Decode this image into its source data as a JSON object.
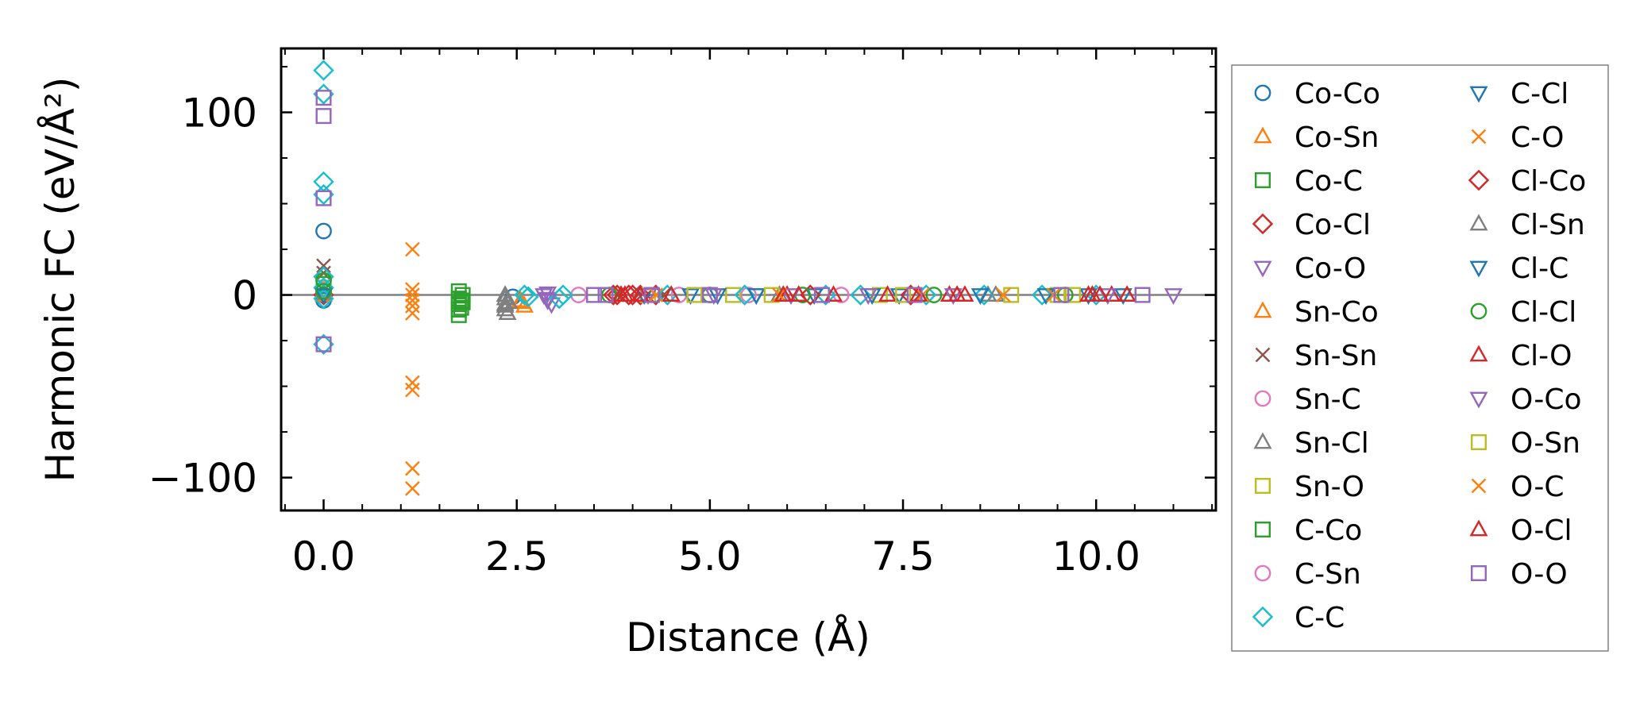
{
  "chart_data": {
    "type": "scatter",
    "title": "",
    "xlabel": "Distance (Å)",
    "ylabel": "Harmonic FC (eV/Å²)",
    "xlim": [
      -0.55,
      11.55
    ],
    "ylim": [
      -118,
      135
    ],
    "xticks": [
      0,
      2.5,
      5,
      7.5,
      10
    ],
    "xtick_labels": [
      "0.0",
      "2.5",
      "5.0",
      "7.5",
      "10.0"
    ],
    "yticks": [
      -100,
      0,
      100
    ],
    "ytick_labels": [
      "−100",
      "0",
      "100"
    ],
    "zero_line": 0,
    "grid": false,
    "tick_direction": "in",
    "legend_location": "outside-right",
    "legend_columns": 2,
    "series": [
      {
        "name": "Co-Co",
        "marker": "circle",
        "color": "#1f77b4",
        "points": [
          [
            0,
            0
          ],
          [
            0,
            35
          ],
          [
            0,
            2
          ],
          [
            0,
            -3
          ],
          [
            2.45,
            -1
          ]
        ]
      },
      {
        "name": "Co-Sn",
        "marker": "triangle-up",
        "color": "#ff7f0e",
        "points": [
          [
            2.55,
            -3
          ],
          [
            2.6,
            -6
          ],
          [
            0,
            1
          ]
        ]
      },
      {
        "name": "Co-C",
        "marker": "square",
        "color": "#2ca02c",
        "points": [
          [
            1.75,
            2
          ],
          [
            1.75,
            -2
          ],
          [
            1.75,
            -5
          ],
          [
            1.75,
            -8
          ],
          [
            1.75,
            -11
          ],
          [
            1.78,
            -3
          ],
          [
            1.78,
            -7
          ]
        ]
      },
      {
        "name": "Co-Cl",
        "marker": "diamond",
        "color": "#d62728",
        "points": [
          [
            0,
            0
          ],
          [
            3.75,
            0
          ],
          [
            3.95,
            0
          ],
          [
            4.1,
            0
          ],
          [
            4.3,
            0
          ]
        ]
      },
      {
        "name": "Co-O",
        "marker": "triangle-down",
        "color": "#9467bd",
        "points": [
          [
            2.85,
            0
          ],
          [
            2.9,
            -2
          ],
          [
            2.95,
            -5
          ],
          [
            2.9,
            1
          ]
        ]
      },
      {
        "name": "Sn-Co",
        "marker": "triangle-up",
        "color": "#ff7f0e",
        "points": [
          [
            2.55,
            -4
          ],
          [
            0,
            0
          ]
        ]
      },
      {
        "name": "Sn-Sn",
        "marker": "x",
        "color": "#8c564b",
        "points": [
          [
            0,
            16
          ],
          [
            0,
            12
          ],
          [
            0,
            5
          ],
          [
            3.8,
            0
          ],
          [
            4.4,
            0
          ]
        ]
      },
      {
        "name": "Sn-C",
        "marker": "circle",
        "color": "#e377c2",
        "points": [
          [
            0,
            3
          ],
          [
            3.3,
            0
          ],
          [
            5.5,
            0
          ]
        ]
      },
      {
        "name": "Sn-Cl",
        "marker": "triangle-up",
        "color": "#7f7f7f",
        "points": [
          [
            2.35,
            0
          ],
          [
            2.35,
            -2
          ],
          [
            2.35,
            -5
          ],
          [
            2.35,
            -8
          ],
          [
            2.38,
            -10
          ],
          [
            2.4,
            -4
          ],
          [
            0,
            1
          ],
          [
            8.6,
            0
          ]
        ]
      },
      {
        "name": "Sn-O",
        "marker": "square",
        "color": "#bcbd22",
        "points": [
          [
            0,
            4
          ],
          [
            4.2,
            0
          ],
          [
            5.3,
            0
          ],
          [
            7.2,
            0
          ],
          [
            9.5,
            0
          ]
        ]
      },
      {
        "name": "C-Co",
        "marker": "square",
        "color": "#2ca02c",
        "points": [
          [
            1.8,
            -4
          ],
          [
            1.8,
            0
          ],
          [
            0,
            6
          ]
        ]
      },
      {
        "name": "C-Sn",
        "marker": "circle",
        "color": "#e377c2",
        "points": [
          [
            0,
            2
          ],
          [
            4.6,
            0
          ],
          [
            6.7,
            0
          ]
        ]
      },
      {
        "name": "C-C",
        "marker": "diamond",
        "color": "#17becf",
        "points": [
          [
            0,
            123
          ],
          [
            0,
            110
          ],
          [
            0,
            62
          ],
          [
            0,
            55
          ],
          [
            0,
            10
          ],
          [
            0,
            4
          ],
          [
            0,
            -2
          ],
          [
            0,
            -27
          ],
          [
            2.6,
            0
          ],
          [
            2.65,
            -1
          ],
          [
            3.05,
            -2
          ],
          [
            3.1,
            0
          ],
          [
            4.45,
            0
          ],
          [
            5.45,
            0
          ],
          [
            6.5,
            0
          ],
          [
            6.95,
            0
          ],
          [
            7.8,
            0
          ],
          [
            8.55,
            0
          ],
          [
            9.3,
            0
          ],
          [
            10.0,
            0
          ]
        ]
      },
      {
        "name": "C-Cl",
        "marker": "triangle-down",
        "color": "#1f77b4",
        "points": [
          [
            0,
            0
          ],
          [
            4.15,
            0
          ],
          [
            4.75,
            0
          ],
          [
            5.6,
            0
          ],
          [
            6.35,
            0
          ],
          [
            7.45,
            0
          ],
          [
            8.5,
            0
          ],
          [
            9.35,
            0
          ],
          [
            10.35,
            0
          ]
        ]
      },
      {
        "name": "C-O",
        "marker": "x",
        "color": "#ff7f0e",
        "points": [
          [
            1.15,
            25
          ],
          [
            1.15,
            3
          ],
          [
            1.15,
            -3
          ],
          [
            1.15,
            -6
          ],
          [
            1.15,
            -10
          ],
          [
            1.15,
            -48
          ],
          [
            1.15,
            -52
          ],
          [
            1.15,
            -95
          ],
          [
            1.15,
            -106
          ]
        ]
      },
      {
        "name": "Cl-Co",
        "marker": "diamond",
        "color": "#d62728",
        "points": [
          [
            3.8,
            0
          ],
          [
            4.0,
            0
          ],
          [
            6.3,
            0
          ],
          [
            7.6,
            0
          ]
        ]
      },
      {
        "name": "Cl-Sn",
        "marker": "triangle-up",
        "color": "#7f7f7f",
        "points": [
          [
            2.35,
            -6
          ],
          [
            5.9,
            0
          ],
          [
            8.7,
            0
          ]
        ]
      },
      {
        "name": "Cl-C",
        "marker": "triangle-down",
        "color": "#1f77b4",
        "points": [
          [
            5.1,
            0
          ],
          [
            5.6,
            0
          ],
          [
            7.1,
            0
          ],
          [
            9.9,
            0
          ]
        ]
      },
      {
        "name": "Cl-Cl",
        "marker": "circle",
        "color": "#2ca02c",
        "points": [
          [
            0,
            8
          ],
          [
            0,
            2
          ],
          [
            3.7,
            0
          ],
          [
            5.0,
            0
          ],
          [
            6.2,
            0
          ],
          [
            7.9,
            0
          ],
          [
            9.6,
            0
          ]
        ]
      },
      {
        "name": "Cl-O",
        "marker": "triangle-up",
        "color": "#d62728",
        "points": [
          [
            3.9,
            0
          ],
          [
            4.5,
            0
          ],
          [
            6.0,
            0
          ],
          [
            6.6,
            0
          ],
          [
            7.3,
            0
          ],
          [
            8.1,
            0
          ],
          [
            8.3,
            0
          ],
          [
            9.95,
            0
          ],
          [
            10.2,
            0
          ],
          [
            10.4,
            0
          ]
        ]
      },
      {
        "name": "O-Co",
        "marker": "triangle-down",
        "color": "#9467bd",
        "points": [
          [
            2.9,
            -3
          ],
          [
            4.2,
            0
          ],
          [
            5.05,
            0
          ],
          [
            6.05,
            0
          ],
          [
            7.05,
            0
          ],
          [
            8.15,
            0
          ],
          [
            10.15,
            0
          ],
          [
            11.0,
            0
          ]
        ]
      },
      {
        "name": "O-Sn",
        "marker": "square",
        "color": "#bcbd22",
        "points": [
          [
            4.8,
            0
          ],
          [
            5.8,
            0
          ],
          [
            7.5,
            0
          ],
          [
            8.9,
            0
          ],
          [
            9.7,
            0
          ]
        ]
      },
      {
        "name": "O-C",
        "marker": "x",
        "color": "#ff7f0e",
        "points": [
          [
            1.15,
            0
          ],
          [
            4.3,
            0
          ],
          [
            5.9,
            0
          ],
          [
            7.75,
            0
          ],
          [
            8.8,
            0
          ],
          [
            9.45,
            0
          ]
        ]
      },
      {
        "name": "O-Cl",
        "marker": "triangle-up",
        "color": "#d62728",
        "points": [
          [
            3.85,
            0
          ],
          [
            4.1,
            0
          ],
          [
            5.95,
            0
          ],
          [
            6.15,
            0
          ],
          [
            7.7,
            0
          ],
          [
            8.2,
            0
          ],
          [
            9.9,
            0
          ],
          [
            10.05,
            0
          ]
        ]
      },
      {
        "name": "O-O",
        "marker": "square",
        "color": "#9467bd",
        "points": [
          [
            0,
            108
          ],
          [
            0,
            98
          ],
          [
            0,
            53
          ],
          [
            0,
            -27
          ],
          [
            3.5,
            0
          ],
          [
            3.65,
            0
          ],
          [
            4.25,
            0
          ],
          [
            5.0,
            0
          ],
          [
            6.45,
            0
          ],
          [
            7.65,
            0
          ],
          [
            9.55,
            0
          ],
          [
            10.6,
            0
          ]
        ]
      }
    ]
  }
}
